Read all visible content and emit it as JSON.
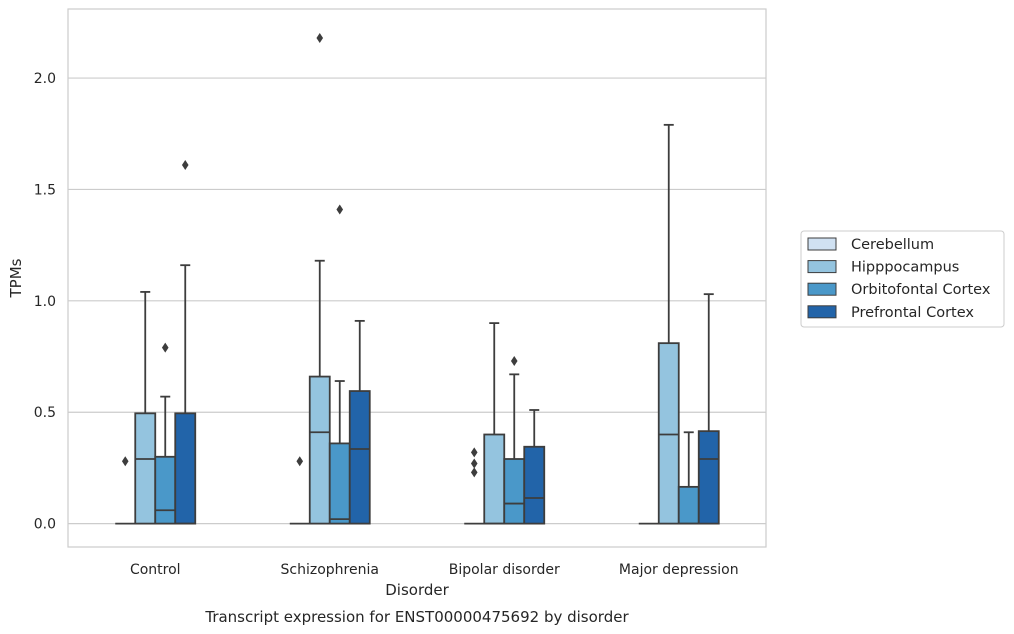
{
  "caption": "Transcript expression for ENST00000475692 by disorder",
  "chart_data": {
    "type": "box",
    "xlabel": "Disorder",
    "ylabel": "TPMs",
    "ylim": [
      -0.105,
      2.31
    ],
    "yticks": [
      0.0,
      0.5,
      1.0,
      1.5,
      2.0
    ],
    "ytick_labels": [
      "0.0",
      "0.5",
      "1.0",
      "1.5",
      "2.0"
    ],
    "grid": "y",
    "legend_position": "right",
    "categories": [
      "Control",
      "Schizophrenia",
      "Bipolar disorder",
      "Major depression"
    ],
    "series": [
      {
        "name": "Cerebellum",
        "color": "#d0e1f2",
        "boxes": [
          {
            "q1": 0.0,
            "median": 0.0,
            "q3": 0.0,
            "whisker_low": 0.0,
            "whisker_high": 0.0,
            "outliers": [
              0.28
            ]
          },
          {
            "q1": 0.0,
            "median": 0.0,
            "q3": 0.0,
            "whisker_low": 0.0,
            "whisker_high": 0.0,
            "outliers": [
              0.28
            ]
          },
          {
            "q1": 0.0,
            "median": 0.0,
            "q3": 0.0,
            "whisker_low": 0.0,
            "whisker_high": 0.0,
            "outliers": [
              0.23,
              0.27,
              0.32
            ]
          },
          {
            "q1": 0.0,
            "median": 0.0,
            "q3": 0.0,
            "whisker_low": 0.0,
            "whisker_high": 0.0,
            "outliers": []
          }
        ]
      },
      {
        "name": "Hipppocampus",
        "color": "#94c4df",
        "boxes": [
          {
            "q1": 0.0,
            "median": 0.29,
            "q3": 0.495,
            "whisker_low": 0.0,
            "whisker_high": 1.04,
            "outliers": []
          },
          {
            "q1": 0.0,
            "median": 0.41,
            "q3": 0.66,
            "whisker_low": 0.0,
            "whisker_high": 1.18,
            "outliers": [
              2.18
            ]
          },
          {
            "q1": 0.0,
            "median": 0.0,
            "q3": 0.4,
            "whisker_low": 0.0,
            "whisker_high": 0.9,
            "outliers": []
          },
          {
            "q1": 0.0,
            "median": 0.4,
            "q3": 0.81,
            "whisker_low": 0.0,
            "whisker_high": 1.79,
            "outliers": []
          }
        ]
      },
      {
        "name": "Orbitofontal Cortex",
        "color": "#4a98c9",
        "boxes": [
          {
            "q1": 0.0,
            "median": 0.06,
            "q3": 0.3,
            "whisker_low": 0.0,
            "whisker_high": 0.57,
            "outliers": [
              0.79
            ]
          },
          {
            "q1": 0.0,
            "median": 0.02,
            "q3": 0.36,
            "whisker_low": 0.0,
            "whisker_high": 0.64,
            "outliers": [
              1.41
            ]
          },
          {
            "q1": 0.0,
            "median": 0.09,
            "q3": 0.29,
            "whisker_low": 0.0,
            "whisker_high": 0.67,
            "outliers": [
              0.73
            ]
          },
          {
            "q1": 0.0,
            "median": 0.0,
            "q3": 0.165,
            "whisker_low": 0.0,
            "whisker_high": 0.41,
            "outliers": []
          }
        ]
      },
      {
        "name": "Prefrontal Cortex",
        "color": "#2264a9",
        "boxes": [
          {
            "q1": 0.0,
            "median": 0.0,
            "q3": 0.495,
            "whisker_low": 0.0,
            "whisker_high": 1.16,
            "outliers": [
              1.61
            ]
          },
          {
            "q1": 0.0,
            "median": 0.335,
            "q3": 0.595,
            "whisker_low": 0.0,
            "whisker_high": 0.91,
            "outliers": []
          },
          {
            "q1": 0.0,
            "median": 0.115,
            "q3": 0.345,
            "whisker_low": 0.0,
            "whisker_high": 0.51,
            "outliers": []
          },
          {
            "q1": 0.0,
            "median": 0.29,
            "q3": 0.415,
            "whisker_low": 0.0,
            "whisker_high": 1.03,
            "outliers": []
          }
        ]
      }
    ]
  }
}
